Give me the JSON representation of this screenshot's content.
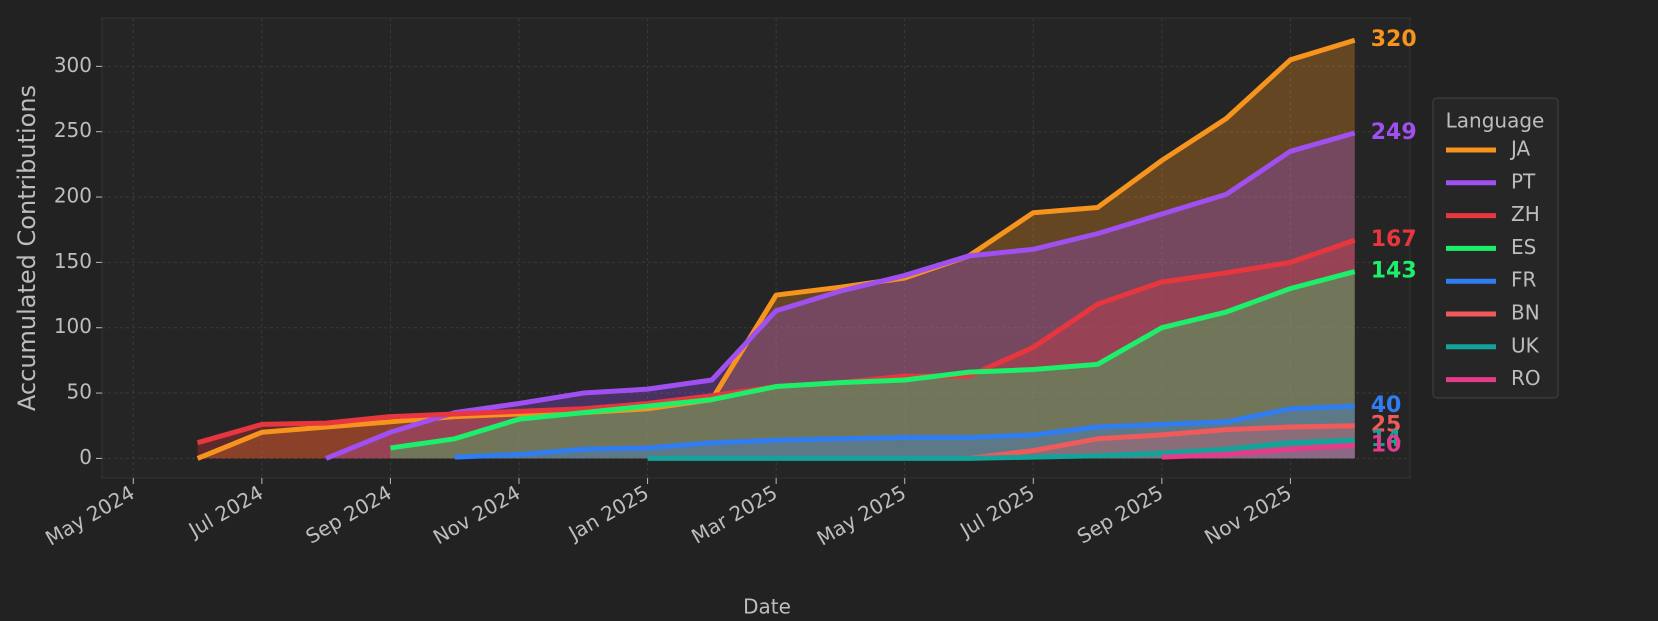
{
  "chart_data": {
    "type": "line",
    "xlabel": "Date",
    "ylabel": "Accumulated Contributions",
    "x": [
      "2024-05",
      "2024-06",
      "2024-07",
      "2024-08",
      "2024-09",
      "2024-10",
      "2024-11",
      "2024-12",
      "2025-01",
      "2025-02",
      "2025-03",
      "2025-04",
      "2025-05",
      "2025-06",
      "2025-07",
      "2025-08",
      "2025-09",
      "2025-10",
      "2025-11",
      "2025-12"
    ],
    "xlim": [
      "2024-04",
      "2026-01"
    ],
    "xticks": [
      {
        "value": "2024-05",
        "label": "May 2024"
      },
      {
        "value": "2024-07",
        "label": "Jul 2024"
      },
      {
        "value": "2024-09",
        "label": "Sep 2024"
      },
      {
        "value": "2024-11",
        "label": "Nov 2024"
      },
      {
        "value": "2025-01",
        "label": "Jan 2025"
      },
      {
        "value": "2025-03",
        "label": "Mar 2025"
      },
      {
        "value": "2025-05",
        "label": "May 2025"
      },
      {
        "value": "2025-07",
        "label": "Jul 2025"
      },
      {
        "value": "2025-09",
        "label": "Sep 2025"
      },
      {
        "value": "2025-11",
        "label": "Nov 2025"
      }
    ],
    "ylim": [
      -15,
      337
    ],
    "yticks": [
      0,
      50,
      100,
      150,
      200,
      250,
      300
    ],
    "grid": true,
    "legend_title": "Language",
    "legend": "right",
    "series": [
      {
        "name": "JA",
        "color": "#f7941d",
        "values": [
          null,
          0,
          20,
          24,
          28,
          32,
          34,
          35,
          38,
          45,
          125,
          131,
          138,
          155,
          188,
          192,
          228,
          260,
          305,
          320
        ]
      },
      {
        "name": "PT",
        "color": "#a04ff0",
        "values": [
          null,
          null,
          null,
          0,
          20,
          35,
          42,
          50,
          53,
          60,
          113,
          128,
          140,
          155,
          160,
          172,
          187,
          202,
          235,
          249
        ]
      },
      {
        "name": "ZH",
        "color": "#e8363f",
        "values": [
          null,
          12,
          26,
          27,
          32,
          34,
          36,
          38,
          42,
          48,
          55,
          58,
          63,
          63,
          85,
          118,
          135,
          142,
          150,
          167
        ]
      },
      {
        "name": "ES",
        "color": "#1cf06a",
        "values": [
          null,
          null,
          null,
          null,
          8,
          15,
          30,
          35,
          40,
          45,
          55,
          58,
          60,
          66,
          68,
          72,
          100,
          112,
          130,
          143
        ]
      },
      {
        "name": "FR",
        "color": "#2f7df0",
        "values": [
          null,
          null,
          null,
          null,
          null,
          1,
          3,
          7,
          8,
          12,
          14,
          15,
          16,
          16,
          18,
          24,
          26,
          28,
          38,
          40
        ]
      },
      {
        "name": "BN",
        "color": "#f05a5a",
        "values": [
          null,
          null,
          null,
          null,
          null,
          null,
          null,
          null,
          null,
          null,
          null,
          null,
          null,
          0,
          6,
          15,
          18,
          22,
          24,
          25
        ]
      },
      {
        "name": "UK",
        "color": "#14a39a",
        "values": [
          null,
          null,
          null,
          null,
          null,
          null,
          null,
          null,
          0,
          0,
          0,
          0,
          0,
          0,
          1,
          2,
          4,
          7,
          12,
          14
        ]
      },
      {
        "name": "RO",
        "color": "#e43c8a",
        "values": [
          null,
          null,
          null,
          null,
          null,
          null,
          null,
          null,
          null,
          null,
          null,
          null,
          null,
          null,
          null,
          null,
          1,
          3,
          7,
          10
        ]
      }
    ]
  }
}
